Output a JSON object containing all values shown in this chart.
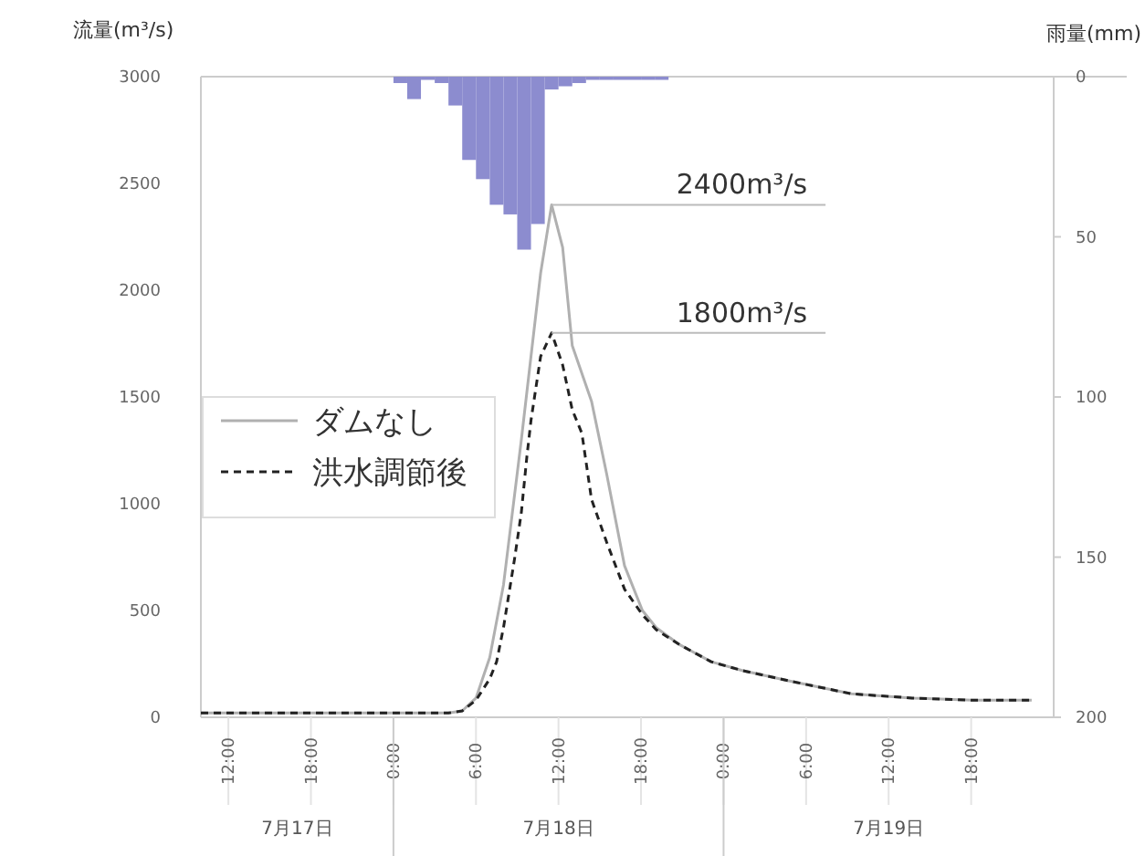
{
  "chart_data": {
    "type": "line",
    "ylabel": "流量(m³/s)",
    "y2label": "雨量(mm)",
    "xlim": [
      "--07-17T10:00",
      "--07-20T00:00"
    ],
    "xticks": [
      {
        "value": "--07-17T12:00",
        "label": "12:00"
      },
      {
        "value": "--07-17T18:00",
        "label": "18:00"
      },
      {
        "value": "--07-18T00:00",
        "label": "0:00"
      },
      {
        "value": "--07-18T06:00",
        "label": "6:00"
      },
      {
        "value": "--07-18T12:00",
        "label": "12:00"
      },
      {
        "value": "--07-18T18:00",
        "label": "18:00"
      },
      {
        "value": "--07-19T00:00",
        "label": "0:00"
      },
      {
        "value": "--07-19T06:00",
        "label": "6:00"
      },
      {
        "value": "--07-19T12:00",
        "label": "12:00"
      },
      {
        "value": "--07-19T18:00",
        "label": "18:00"
      }
    ],
    "ylim": [
      0,
      3000
    ],
    "yticks": [
      0,
      500,
      1000,
      1500,
      2000,
      2500,
      3000
    ],
    "y2lim": [
      200,
      0
    ],
    "y2ticks": [
      0,
      50,
      100,
      150,
      200
    ],
    "legend": "left",
    "grid": false,
    "series": [
      {
        "name": "ダムなし",
        "color": "#b0b0b0",
        "line_style": "solid",
        "x": [
          "--07-17T10:00",
          "--07-17T15:00",
          "--07-17T20:00",
          "--07-18T01:00",
          "--07-18T04:00",
          "--07-18T05:00",
          "--07-18T06:00",
          "--07-18T07:00",
          "--07-18T08:00",
          "--07-18T09:18",
          "--07-18T10:42",
          "--07-18T11:30",
          "--07-18T12:18",
          "--07-18T13:00",
          "--07-18T14:24",
          "--07-18T15:30",
          "--07-18T16:48",
          "--07-18T18:06",
          "--07-18T19:06",
          "--07-18T20:48",
          "--07-18T23:06",
          "--07-19T01:18",
          "--07-19T04:48",
          "--07-19T09:18",
          "--07-19T13:42",
          "--07-19T18:06",
          "--07-19T22:24"
        ],
        "values": [
          20,
          20,
          20,
          20,
          20,
          30,
          90,
          280,
          620,
          1300,
          2080,
          2400,
          2200,
          1740,
          1480,
          1140,
          710,
          500,
          420,
          340,
          260,
          220,
          170,
          110,
          90,
          80,
          80
        ]
      },
      {
        "name": "洪水調節後",
        "color": "#222222",
        "line_style": "dashed",
        "x": [
          "--07-17T10:00",
          "--07-17T15:00",
          "--07-17T20:00",
          "--07-18T01:00",
          "--07-18T04:00",
          "--07-18T05:00",
          "--07-18T06:00",
          "--07-18T07:00",
          "--07-18T07:30",
          "--07-18T08:00",
          "--07-18T08:48",
          "--07-18T09:18",
          "--07-18T09:42",
          "--07-18T10:00",
          "--07-18T10:42",
          "--07-18T11:30",
          "--07-18T12:18",
          "--07-18T13:00",
          "--07-18T13:42",
          "--07-18T14:24",
          "--07-18T15:30",
          "--07-18T16:48",
          "--07-18T18:06",
          "--07-18T19:06",
          "--07-18T20:48",
          "--07-18T23:06",
          "--07-19T01:18",
          "--07-19T04:48",
          "--07-19T09:18",
          "--07-19T13:42",
          "--07-19T18:06",
          "--07-19T22:24"
        ],
        "values": [
          20,
          20,
          20,
          20,
          20,
          30,
          80,
          180,
          260,
          420,
          740,
          960,
          1220,
          1390,
          1690,
          1800,
          1650,
          1440,
          1330,
          1020,
          820,
          600,
          480,
          410,
          340,
          260,
          220,
          170,
          110,
          90,
          80,
          80
        ]
      },
      {
        "type": "bar",
        "axis": "y2",
        "color": "#8c8ccf",
        "x": [
          "--07-18T00:30",
          "--07-18T01:30",
          "--07-18T02:30",
          "--07-18T03:30",
          "--07-18T04:30",
          "--07-18T05:30",
          "--07-18T06:30",
          "--07-18T07:30",
          "--07-18T08:30",
          "--07-18T09:30",
          "--07-18T10:30",
          "--07-18T11:30",
          "--07-18T12:30",
          "--07-18T13:30",
          "--07-18T14:30",
          "--07-18T15:30",
          "--07-18T16:30",
          "--07-18T17:30",
          "--07-18T18:30",
          "--07-18T19:30"
        ],
        "values": [
          2,
          7,
          1,
          2,
          9,
          26,
          32,
          40,
          43,
          54,
          46,
          4,
          3,
          2,
          1,
          1,
          1,
          1,
          1,
          1
        ]
      }
    ],
    "annotations": [
      {
        "text": "2400m³/s",
        "x": "--07-18T11:30",
        "y": 2400
      },
      {
        "text": "1800m³/s",
        "x": "--07-18T11:30",
        "y": 1800
      },
      "7月17日",
      "7月18日",
      "7月19日"
    ]
  }
}
